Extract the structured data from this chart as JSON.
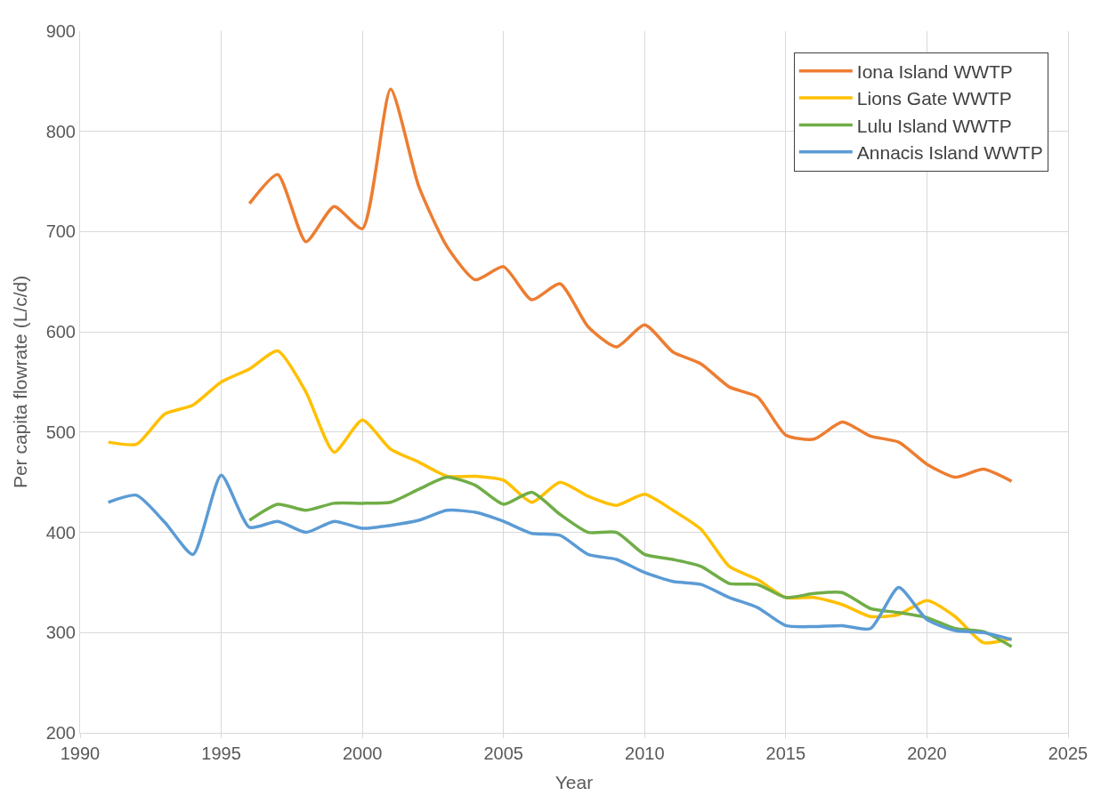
{
  "chart_data": {
    "type": "line",
    "xlabel": "Year",
    "ylabel": "Per capita flowrate (L/c/d)",
    "xlim": [
      1990,
      2025
    ],
    "xticks": [
      1990,
      1995,
      2000,
      2005,
      2010,
      2015,
      2020,
      2025
    ],
    "ylim": [
      200,
      900
    ],
    "yticks": [
      200,
      300,
      400,
      500,
      600,
      700,
      800,
      900
    ],
    "grid": true,
    "legend": "top right",
    "marker": "none",
    "line_style": "solid",
    "series": [
      {
        "name": "Iona Island WWTP",
        "color": "#ed7d31",
        "x": [
          1996,
          1997,
          1998,
          1999,
          2000,
          2001,
          2002,
          2003,
          2004,
          2005,
          2006,
          2007,
          2008,
          2009,
          2010,
          2011,
          2012,
          2013,
          2014,
          2015,
          2016,
          2017,
          2018,
          2019,
          2020,
          2021,
          2022,
          2023
        ],
        "values": [
          728,
          757,
          690,
          725,
          703,
          842,
          745,
          685,
          652,
          665,
          632,
          648,
          605,
          585,
          607,
          580,
          568,
          545,
          535,
          497,
          493,
          510,
          496,
          490,
          468,
          455,
          463,
          451
        ]
      },
      {
        "name": "Lions Gate WWTP",
        "color": "#ffc000",
        "x": [
          1991,
          1992,
          1993,
          1994,
          1995,
          1996,
          1997,
          1998,
          1999,
          2000,
          2001,
          2002,
          2003,
          2004,
          2005,
          2006,
          2007,
          2008,
          2009,
          2010,
          2011,
          2012,
          2013,
          2014,
          2015,
          2016,
          2017,
          2018,
          2019,
          2020,
          2021,
          2022,
          2023
        ],
        "values": [
          490,
          488,
          518,
          527,
          550,
          563,
          581,
          540,
          480,
          512,
          483,
          470,
          456,
          456,
          452,
          430,
          450,
          436,
          427,
          438,
          422,
          403,
          366,
          353,
          335,
          335,
          328,
          316,
          318,
          332,
          316,
          290,
          294
        ]
      },
      {
        "name": "Lulu Island WWTP",
        "color": "#70ad47",
        "x": [
          1996,
          1997,
          1998,
          1999,
          2000,
          2001,
          2002,
          2003,
          2004,
          2005,
          2006,
          2007,
          2008,
          2009,
          2010,
          2011,
          2012,
          2013,
          2014,
          2015,
          2016,
          2017,
          2018,
          2019,
          2020,
          2021,
          2022,
          2023
        ],
        "values": [
          412,
          428,
          422,
          429,
          429,
          430,
          443,
          455,
          447,
          428,
          440,
          418,
          400,
          400,
          378,
          373,
          366,
          349,
          348,
          335,
          339,
          340,
          324,
          320,
          315,
          304,
          301,
          286
        ]
      },
      {
        "name": "Annacis Island WWTP",
        "color": "#5b9bd5",
        "x": [
          1991,
          1992,
          1993,
          1994,
          1995,
          1996,
          1997,
          1998,
          1999,
          2000,
          2001,
          2002,
          2003,
          2004,
          2005,
          2006,
          2007,
          2008,
          2009,
          2010,
          2011,
          2012,
          2013,
          2014,
          2015,
          2016,
          2017,
          2018,
          2019,
          2020,
          2021,
          2022,
          2023
        ],
        "values": [
          430,
          437,
          410,
          378,
          457,
          405,
          411,
          400,
          411,
          404,
          407,
          412,
          422,
          420,
          411,
          399,
          397,
          378,
          373,
          360,
          351,
          348,
          335,
          325,
          307,
          306,
          307,
          304,
          345,
          313,
          302,
          300,
          293
        ]
      }
    ]
  }
}
